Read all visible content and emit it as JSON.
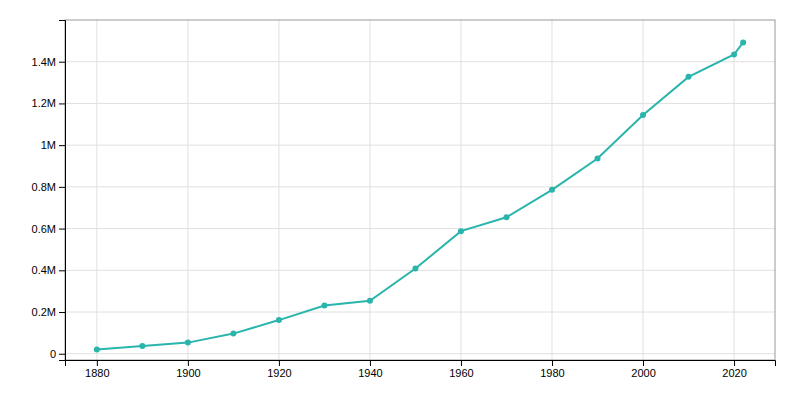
{
  "chart_data": {
    "type": "line",
    "x": [
      1880,
      1890,
      1900,
      1910,
      1920,
      1930,
      1940,
      1950,
      1960,
      1970,
      1980,
      1990,
      2000,
      2010,
      2020,
      2022
    ],
    "values": [
      20550,
      37673,
      53321,
      96614,
      161379,
      231542,
      253854,
      408442,
      587718,
      654153,
      785880,
      935933,
      1144646,
      1327407,
      1434625,
      1492510
    ],
    "color": "#2AB5AC",
    "marker": "circle",
    "xlim": [
      1873,
      2029
    ],
    "ylim": [
      -30000,
      1600000
    ],
    "xticks": [
      1880,
      1900,
      1920,
      1940,
      1960,
      1980,
      2000,
      2020
    ],
    "yticks": [
      0,
      {
        "value": 200000,
        "label": "0.2M"
      },
      {
        "value": 400000,
        "label": "0.4M"
      },
      {
        "value": 600000,
        "label": "0.6M"
      },
      {
        "value": 800000,
        "label": "0.8M"
      },
      {
        "value": 1000000,
        "label": "1M"
      },
      {
        "value": 1200000,
        "label": "1.2M"
      },
      {
        "value": 1400000,
        "label": "1.4M"
      }
    ],
    "grid": true
  }
}
